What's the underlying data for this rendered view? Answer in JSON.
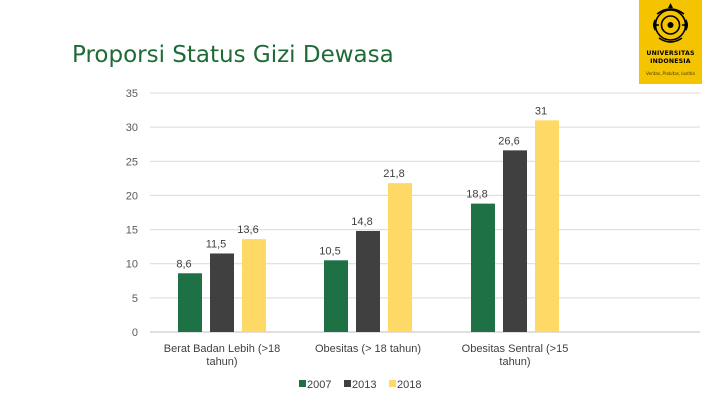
{
  "slide": {
    "title": "Proporsi Status Gizi Dewasa"
  },
  "logo": {
    "line1": "UNIVERSITAS",
    "line2": "INDONESIA",
    "motto": "Veritas, Probitas, Iustitia",
    "icon": "makara-emblem-icon",
    "background_color": "#f5c400"
  },
  "chart_data": {
    "type": "bar",
    "categories": [
      "Berat Badan Lebih (>18 tahun)",
      "Obesitas (> 18 tahun)",
      "Obesitas Sentral (>15 tahun)"
    ],
    "category_lines": [
      [
        "Berat Badan Lebih (>18",
        "tahun)"
      ],
      [
        "Obesitas (> 18 tahun)"
      ],
      [
        "Obesitas Sentral (>15",
        "tahun)"
      ]
    ],
    "series": [
      {
        "name": "2007",
        "color": "#1e7145",
        "values": [
          8.6,
          10.5,
          18.8
        ],
        "labels": [
          "8,6",
          "10,5",
          "18,8"
        ]
      },
      {
        "name": "2013",
        "color": "#404040",
        "values": [
          11.5,
          14.8,
          26.6
        ],
        "labels": [
          "11,5",
          "14,8",
          "26,6"
        ]
      },
      {
        "name": "2018",
        "color": "#ffd966",
        "values": [
          13.6,
          21.8,
          31
        ],
        "labels": [
          "13,6",
          "21,8",
          "31"
        ]
      }
    ],
    "ylim": [
      0,
      35
    ],
    "yticks": [
      0,
      5,
      10,
      15,
      20,
      25,
      30,
      35
    ],
    "grid": true,
    "legend": "bottom",
    "title": "",
    "xlabel": "",
    "ylabel": ""
  }
}
